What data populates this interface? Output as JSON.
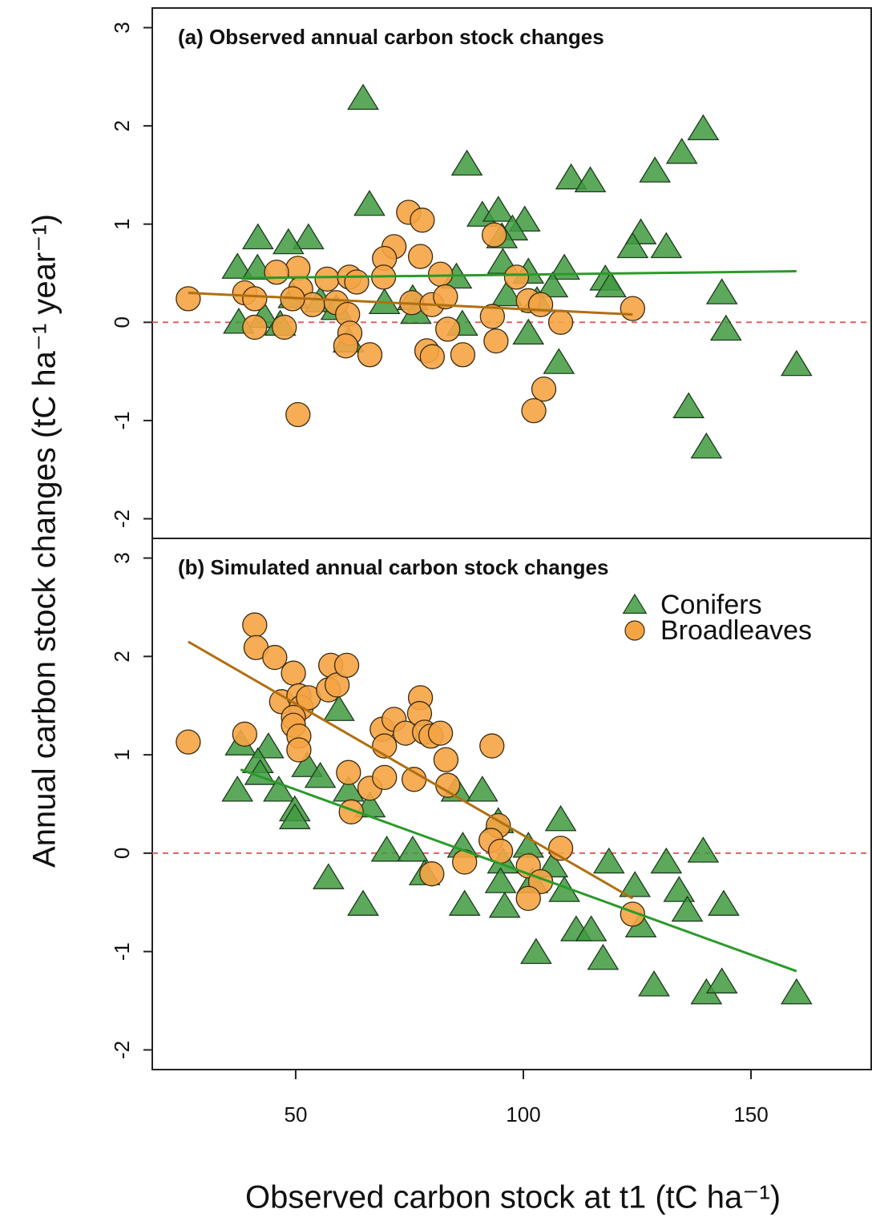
{
  "axis_labels": {
    "y": "Annual carbon stock changes (tC ha⁻¹ year⁻¹)",
    "x": "Observed carbon stock at t1 (tC ha⁻¹)"
  },
  "chart_data": [
    {
      "type": "scatter",
      "title": "(a) Observed annual carbon stock changes",
      "xlim": [
        18.5,
        176.4
      ],
      "ylim": [
        -2.2,
        3.2
      ],
      "yticks": [
        -2,
        -1,
        0,
        1,
        2,
        3
      ],
      "hline": 0,
      "hline_color": "#e06060",
      "series": [
        {
          "name": "Conifers",
          "marker": "triangle",
          "color": "#3f9a3f",
          "x": [
            64.8,
            87.6,
            66.2,
            139.5,
            134.8,
            128.9,
            110.5,
            114.7,
            131.4,
            125.8,
            124,
            91,
            94.5,
            100.3,
            97.6,
            95.3,
            41.7,
            52.8,
            48.4,
            37.2,
            41.6,
            95.5,
            85.3,
            109,
            106.4,
            101.1,
            118,
            119.2,
            143.6,
            96.4,
            103,
            69.5,
            75.7,
            49.5,
            55.4,
            58.9,
            37.5,
            43.1,
            46.6,
            76.4,
            86.6,
            144.5,
            101.1,
            61.6,
            107.8,
            160,
            136.3,
            140.2
          ],
          "values": [
            2.28,
            1.61,
            1.2,
            1.97,
            1.73,
            1.54,
            1.47,
            1.44,
            0.77,
            0.91,
            0.77,
            1.09,
            1.14,
            1.04,
            0.95,
            0.87,
            0.86,
            0.86,
            0.81,
            0.56,
            0.55,
            0.61,
            0.46,
            0.55,
            0.37,
            0.51,
            0.44,
            0.37,
            0.3,
            0.28,
            0.22,
            0.2,
            0.24,
            0.26,
            0.22,
            0.14,
            0,
            0.06,
            -0.02,
            0.1,
            -0.02,
            -0.07,
            -0.11,
            -0.19,
            -0.41,
            -0.43,
            -0.86,
            -1.27
          ]
        },
        {
          "name": "Broadleaves",
          "marker": "circle",
          "color": "#f5a444",
          "x": [
            26.4,
            74.8,
            77.8,
            71.6,
            69.5,
            77.4,
            93.6,
            98.5,
            50.5,
            45.8,
            56.9,
            61.8,
            63.4,
            69.3,
            81.8,
            38.8,
            41,
            51.1,
            53.7,
            58.9,
            49.3,
            61.4,
            75.5,
            79.9,
            82.9,
            101.1,
            103.8,
            124,
            93.2,
            108.2,
            83.4,
            41,
            47.5,
            61.9,
            61,
            66.3,
            94,
            78.8,
            80,
            86.7,
            104.5,
            102.3,
            50.5
          ],
          "values": [
            0.24,
            1.12,
            1.04,
            0.77,
            0.65,
            0.67,
            0.89,
            0.46,
            0.55,
            0.51,
            0.44,
            0.46,
            0.41,
            0.46,
            0.49,
            0.3,
            0.24,
            0.34,
            0.18,
            0.2,
            0.24,
            0.08,
            0.2,
            0.18,
            0.26,
            0.22,
            0.18,
            0.14,
            0.06,
            0,
            -0.07,
            -0.05,
            -0.05,
            -0.11,
            -0.24,
            -0.33,
            -0.19,
            -0.29,
            -0.35,
            -0.33,
            -0.68,
            -0.9,
            -0.94
          ]
        }
      ],
      "fit_lines": [
        {
          "color": "#2a9a2a",
          "x": [
            38,
            160
          ],
          "values": [
            0.45,
            0.52
          ]
        },
        {
          "color": "#b06f10",
          "x": [
            26.4,
            124
          ],
          "values": [
            0.3,
            0.08
          ]
        }
      ]
    },
    {
      "type": "scatter",
      "title": "(b) Simulated annual carbon stock changes",
      "xlim": [
        18.5,
        176.4
      ],
      "xticks": [
        50,
        100,
        150
      ],
      "ylim": [
        -2.2,
        3.2
      ],
      "yticks": [
        -2,
        -1,
        0,
        1,
        2,
        3
      ],
      "hline": 0,
      "hline_color": "#e06060",
      "legend": "top-right",
      "series": [
        {
          "name": "Conifers",
          "marker": "triangle",
          "color": "#3f9a3f",
          "x": [
            37.9,
            44,
            41.7,
            42.2,
            37.2,
            52.5,
            55.4,
            46.3,
            49.8,
            49.8,
            59.5,
            61.6,
            66.3,
            57.2,
            64.8,
            70,
            75.7,
            78.3,
            85.3,
            91,
            86.7,
            87.1,
            94.5,
            95.5,
            95,
            95.9,
            101.1,
            102,
            106.4,
            109,
            108.2,
            102.8,
            111.6,
            114.9,
            117.5,
            118.8,
            124.5,
            125.8,
            128.7,
            131.4,
            134.2,
            136,
            139.5,
            140.2,
            143.6,
            144,
            160
          ],
          "values": [
            1.11,
            1.08,
            0.93,
            0.81,
            0.64,
            0.89,
            0.78,
            0.64,
            0.44,
            0.36,
            1.46,
            0.64,
            0.48,
            -0.25,
            -0.52,
            0.03,
            0.03,
            -0.21,
            0.64,
            0.64,
            0.07,
            -0.52,
            0.32,
            -0.09,
            -0.29,
            -0.54,
            0.07,
            -0.29,
            -0.13,
            -0.38,
            0.34,
            -1.01,
            -0.78,
            -0.78,
            -1.07,
            -0.09,
            -0.33,
            -0.74,
            -1.34,
            -0.09,
            -0.38,
            -0.58,
            0.02,
            -1.42,
            -1.31,
            -0.52,
            -1.42
          ]
        },
        {
          "name": "Broadleaves",
          "marker": "circle",
          "color": "#f5a444",
          "x": [
            26.4,
            41,
            41.3,
            45.4,
            49.5,
            38.8,
            46.9,
            50.7,
            51.2,
            49.5,
            52.8,
            49.5,
            50.7,
            50.7,
            57.2,
            57.7,
            59.1,
            61.2,
            69,
            71.6,
            74.1,
            77.4,
            77.2,
            78.3,
            79.7,
            81.8,
            69.5,
            83,
            93.1,
            61.6,
            62.2,
            66.3,
            69.5,
            76,
            83.4,
            94.5,
            92.9,
            95,
            87.1,
            79.9,
            108.2,
            101.1,
            103.8,
            101.1,
            124
          ],
          "values": [
            1.13,
            2.32,
            2.09,
            1.99,
            1.83,
            1.21,
            1.54,
            1.6,
            1.48,
            1.38,
            1.58,
            1.3,
            1.19,
            1.05,
            1.66,
            1.91,
            1.71,
            1.91,
            1.26,
            1.36,
            1.22,
            1.58,
            1.42,
            1.23,
            1.19,
            1.22,
            1.09,
            0.95,
            1.09,
            0.82,
            0.42,
            0.66,
            0.77,
            0.75,
            0.69,
            0.28,
            0.13,
            0.02,
            -0.09,
            -0.21,
            0.05,
            -0.13,
            -0.29,
            -0.46,
            -0.62
          ]
        }
      ],
      "fit_lines": [
        {
          "color": "#b06f10",
          "x": [
            26.4,
            124
          ],
          "values": [
            2.15,
            -0.46
          ]
        },
        {
          "color": "#2a9a2a",
          "x": [
            37.9,
            160
          ],
          "values": [
            0.85,
            -1.2
          ]
        }
      ]
    }
  ]
}
